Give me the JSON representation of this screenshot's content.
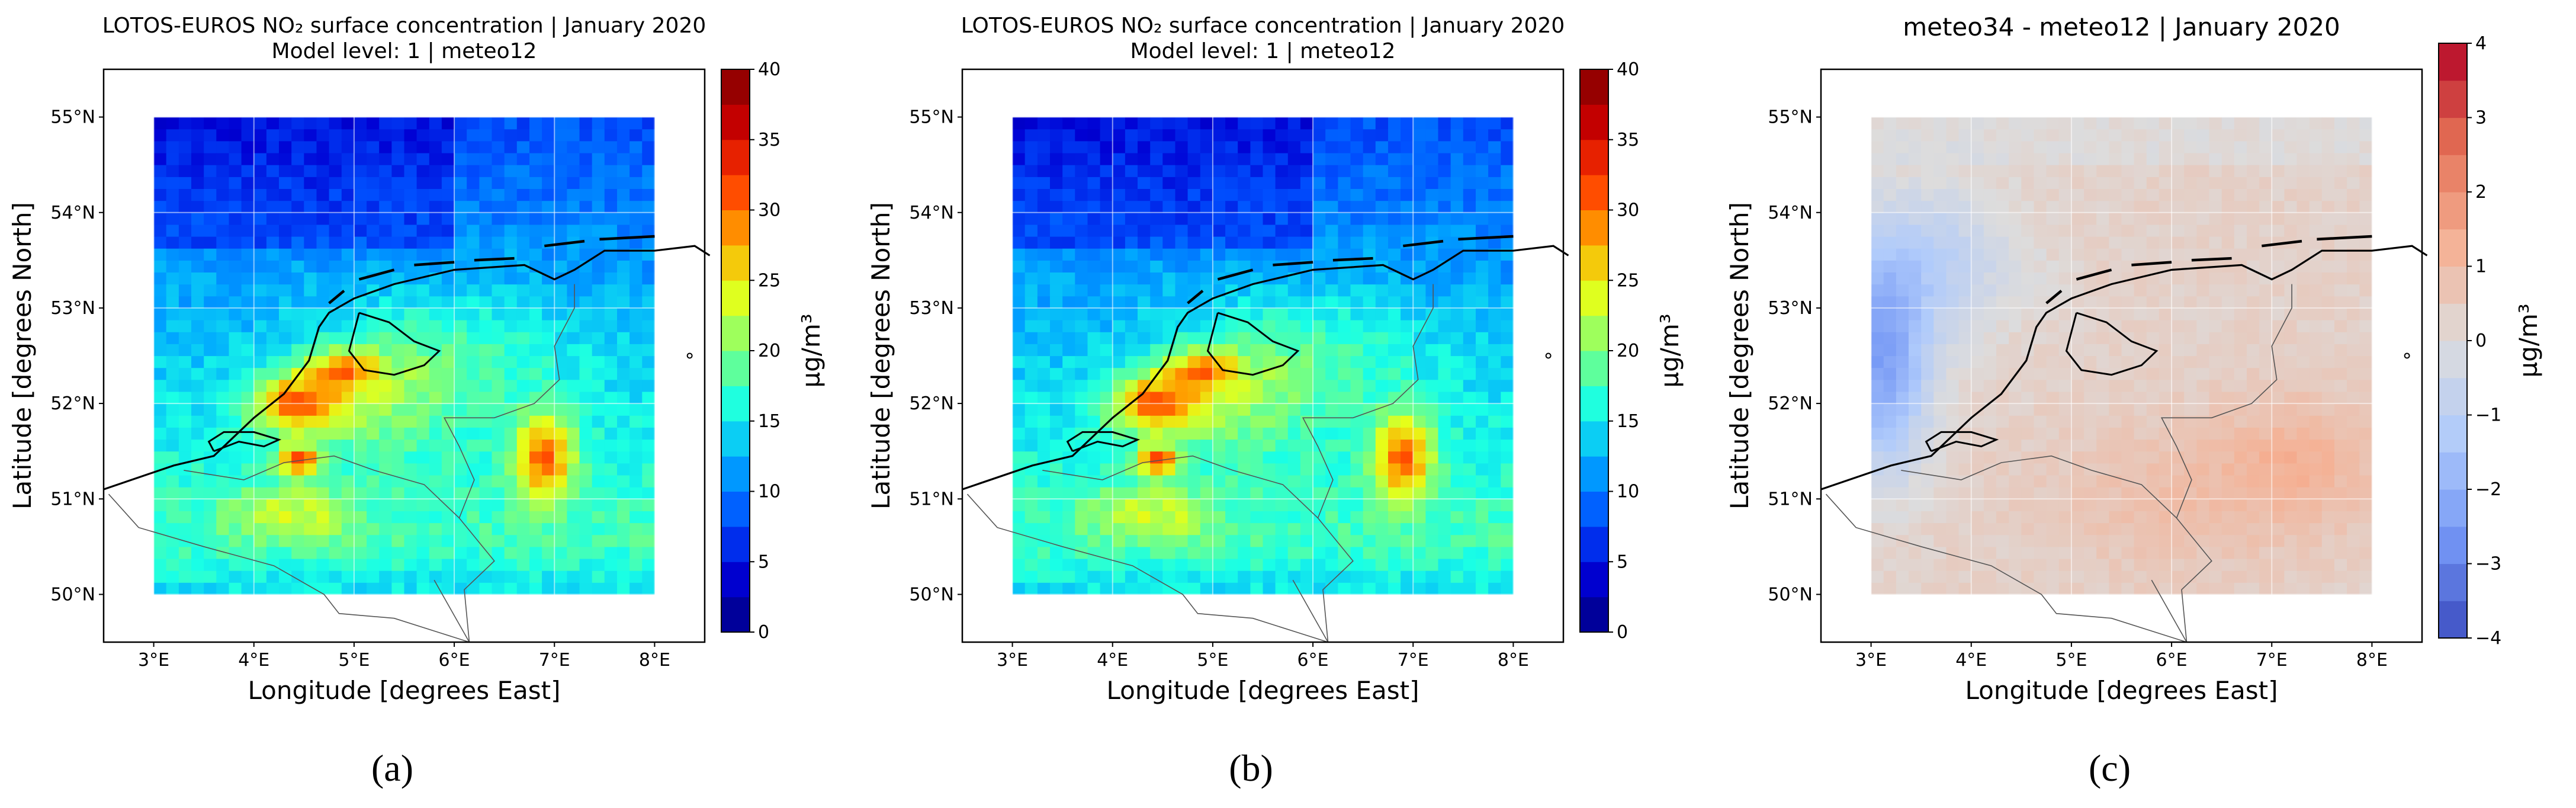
{
  "panels": [
    {
      "title": "LOTOS-EUROS NO₂ surface concentration | January 2020",
      "subtitle": "Model level: 1 | meteo12",
      "xlabel": "Longitude [degrees East]",
      "ylabel": "Latitude [degrees North]",
      "x_ticks": [
        "3°E",
        "4°E",
        "5°E",
        "6°E",
        "7°E",
        "8°E"
      ],
      "y_ticks": [
        "50°N",
        "51°N",
        "52°N",
        "53°N",
        "54°N",
        "55°N"
      ],
      "colorbar": {
        "label": "µg/m³",
        "ticks": [
          "0",
          "5",
          "10",
          "15",
          "20",
          "25",
          "30",
          "35",
          "40"
        ]
      },
      "panel_label": "(a)"
    },
    {
      "title": "LOTOS-EUROS NO₂ surface concentration | January 2020",
      "subtitle": "Model level: 1 | meteo12",
      "xlabel": "Longitude [degrees East]",
      "ylabel": "Latitude [degrees North]",
      "x_ticks": [
        "3°E",
        "4°E",
        "5°E",
        "6°E",
        "7°E",
        "8°E"
      ],
      "y_ticks": [
        "50°N",
        "51°N",
        "52°N",
        "53°N",
        "54°N",
        "55°N"
      ],
      "colorbar": {
        "label": "µg/m³",
        "ticks": [
          "0",
          "5",
          "10",
          "15",
          "20",
          "25",
          "30",
          "35",
          "40"
        ]
      },
      "panel_label": "(b)"
    },
    {
      "title": "meteo34 - meteo12 | January 2020",
      "subtitle": "",
      "xlabel": "Longitude [degrees East]",
      "ylabel": "Latitude [degrees North]",
      "x_ticks": [
        "3°E",
        "4°E",
        "5°E",
        "6°E",
        "7°E",
        "8°E"
      ],
      "y_ticks": [
        "50°N",
        "51°N",
        "52°N",
        "53°N",
        "54°N",
        "55°N"
      ],
      "colorbar": {
        "label": "µg/m³",
        "ticks": [
          "4",
          "3",
          "2",
          "1",
          "0",
          "−1",
          "−2",
          "−3",
          "−4"
        ]
      },
      "panel_label": "(c)"
    }
  ],
  "map_extent": {
    "lon": [
      2.5,
      8.5
    ],
    "lat": [
      49.5,
      55.5
    ],
    "grid_lon": [
      3.0,
      8.0
    ],
    "grid_lat": [
      50.0,
      55.0
    ]
  },
  "colors": {
    "jet_scale": [
      "#00007f",
      "#0000d4",
      "#0050ff",
      "#00a8ff",
      "#19ffe6",
      "#7dff7a",
      "#e6ff19",
      "#ffa000",
      "#ff3a00",
      "#c80000",
      "#7f0000"
    ],
    "diverging_scale": [
      "#3b4cc0",
      "#7396f5",
      "#b0cbfb",
      "#dddcdc",
      "#f5b093",
      "#e36e54",
      "#b40426"
    ],
    "coast": "#000000",
    "border": "#555555"
  }
}
